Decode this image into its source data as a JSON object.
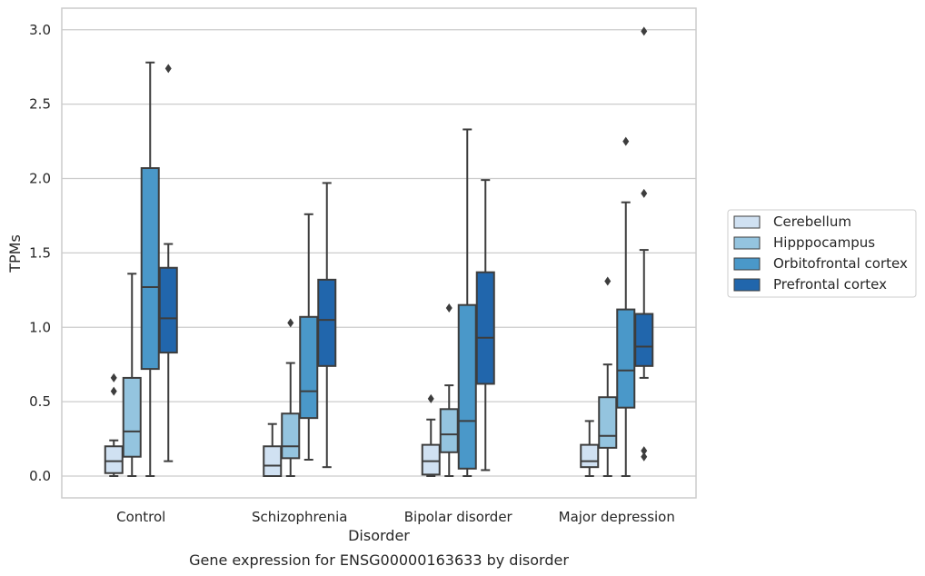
{
  "chart_data": {
    "type": "boxplot",
    "title": "Gene expression for ENSG00000163633 by disorder",
    "xlabel": "Disorder",
    "ylabel": "TPMs",
    "categories": [
      "Control",
      "Schizophrenia",
      "Bipolar disorder",
      "Major depression"
    ],
    "y_ticks": [
      "0.0",
      "0.5",
      "1.0",
      "1.5",
      "2.0",
      "2.5",
      "3.0"
    ],
    "ylim": [
      -0.15,
      3.15
    ],
    "grid": "horizontal",
    "legend_position": "right",
    "series": [
      {
        "name": "Cerebellum",
        "color": "#d0e1f2",
        "boxes": [
          {
            "whislo": 0.0,
            "q1": 0.02,
            "med": 0.1,
            "q3": 0.2,
            "whishi": 0.24,
            "fliers": [
              0.57,
              0.66
            ]
          },
          {
            "whislo": 0.0,
            "q1": 0.0,
            "med": 0.07,
            "q3": 0.2,
            "whishi": 0.35,
            "fliers": []
          },
          {
            "whislo": 0.0,
            "q1": 0.01,
            "med": 0.1,
            "q3": 0.21,
            "whishi": 0.38,
            "fliers": [
              0.52
            ]
          },
          {
            "whislo": 0.0,
            "q1": 0.06,
            "med": 0.1,
            "q3": 0.21,
            "whishi": 0.37,
            "fliers": []
          }
        ]
      },
      {
        "name": "Hipppocampus",
        "color": "#94c4df",
        "boxes": [
          {
            "whislo": 0.0,
            "q1": 0.13,
            "med": 0.3,
            "q3": 0.66,
            "whishi": 1.36,
            "fliers": []
          },
          {
            "whislo": 0.0,
            "q1": 0.12,
            "med": 0.2,
            "q3": 0.42,
            "whishi": 0.76,
            "fliers": [
              1.03
            ]
          },
          {
            "whislo": 0.0,
            "q1": 0.16,
            "med": 0.28,
            "q3": 0.45,
            "whishi": 0.61,
            "fliers": [
              1.13
            ]
          },
          {
            "whislo": 0.0,
            "q1": 0.19,
            "med": 0.27,
            "q3": 0.53,
            "whishi": 0.75,
            "fliers": [
              1.31
            ]
          }
        ]
      },
      {
        "name": "Orbitofrontal cortex",
        "color": "#4a98c9",
        "boxes": [
          {
            "whislo": 0.0,
            "q1": 0.72,
            "med": 1.27,
            "q3": 2.07,
            "whishi": 2.78,
            "fliers": []
          },
          {
            "whislo": 0.11,
            "q1": 0.39,
            "med": 0.57,
            "q3": 1.07,
            "whishi": 1.76,
            "fliers": []
          },
          {
            "whislo": 0.0,
            "q1": 0.05,
            "med": 0.37,
            "q3": 1.15,
            "whishi": 2.33,
            "fliers": []
          },
          {
            "whislo": 0.0,
            "q1": 0.46,
            "med": 0.71,
            "q3": 1.12,
            "whishi": 1.84,
            "fliers": [
              2.25
            ]
          }
        ]
      },
      {
        "name": "Prefrontal cortex",
        "color": "#2166ac",
        "boxes": [
          {
            "whislo": 0.1,
            "q1": 0.83,
            "med": 1.06,
            "q3": 1.4,
            "whishi": 1.56,
            "fliers": [
              2.74
            ]
          },
          {
            "whislo": 0.06,
            "q1": 0.74,
            "med": 1.05,
            "q3": 1.32,
            "whishi": 1.97,
            "fliers": []
          },
          {
            "whislo": 0.04,
            "q1": 0.62,
            "med": 0.93,
            "q3": 1.37,
            "whishi": 1.99,
            "fliers": []
          },
          {
            "whislo": 0.66,
            "q1": 0.74,
            "med": 0.87,
            "q3": 1.09,
            "whishi": 1.52,
            "fliers": [
              0.13,
              0.17,
              1.9,
              2.99
            ]
          }
        ]
      }
    ]
  }
}
